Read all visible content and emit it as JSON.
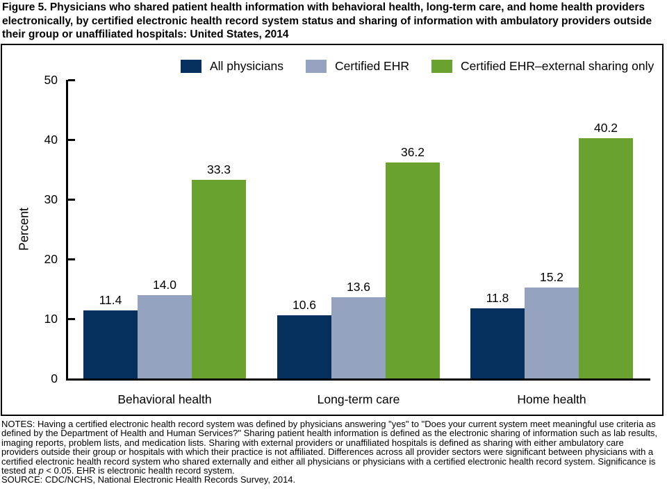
{
  "title": "Figure 5. Physicians who shared patient health information with behavioral health, long-term care, and home health providers electronically, by certified electronic health record system status and sharing of information with ambulatory providers outside their group or unaffiliated hospitals: United States, 2014",
  "chart_data": {
    "type": "bar",
    "categories": [
      "Behavioral health",
      "Long-term care",
      "Home health"
    ],
    "series": [
      {
        "name": "All physicians",
        "color": "#052F5C",
        "values": [
          11.4,
          10.6,
          11.8
        ]
      },
      {
        "name": "Certified EHR",
        "color": "#95A3C1",
        "values": [
          14.0,
          13.6,
          15.2
        ]
      },
      {
        "name": "Certified EHR–external sharing only",
        "color": "#69A22E",
        "values": [
          33.3,
          36.2,
          40.2
        ]
      }
    ],
    "title": "",
    "xlabel": "",
    "ylabel": "Percent",
    "ylim": [
      0,
      50
    ],
    "yticks": [
      0,
      10,
      20,
      30,
      40,
      50
    ],
    "grid": false,
    "legend_position": "top",
    "value_labels": true,
    "value_label_format": "one-decimal"
  },
  "notes": {
    "parts": [
      "NOTES: Having a certified electronic health record system was defined by physicians answering \"yes\" to \"Does your current system meet meaningful use criteria as defined by the Department of Health and Human Services?\" Sharing patient health information is defined as the electronic sharing of information such as lab results, imaging reports, problem lists, and medication lists. Sharing with external providers or unaffiliated hospitals is defined as sharing with either ambulatory care providers outside their group or hospitals with which their practice is not affiliated. Differences across all provider sectors were significant between physicians with a certified electronic health record system who shared externally and either all physicians or physicians with a certified electronic health record system. Significance is tested at ",
      "p",
      " < 0.05. EHR is electronic health record system."
    ]
  },
  "source": "SOURCE: CDC/NCHS, National Electronic Health Records Survey, 2014."
}
